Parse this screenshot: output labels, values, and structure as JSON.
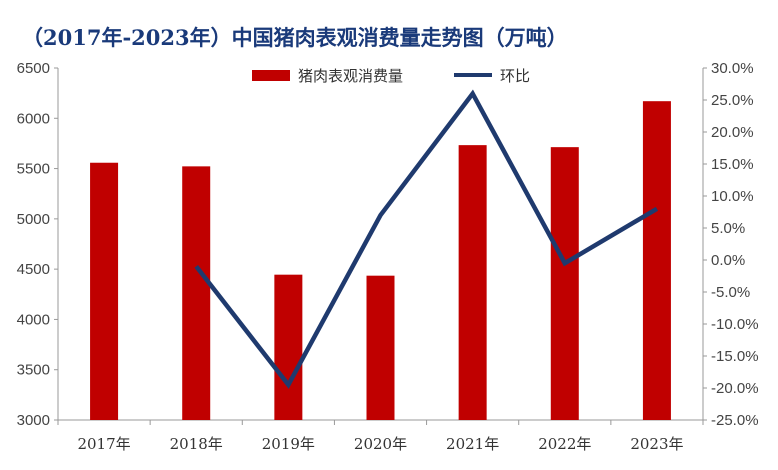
{
  "chart_data": {
    "type": "bar+line",
    "title": "（2017年-2023年）中国猪肉表观消费量走势图（万吨）",
    "categories": [
      "2017年",
      "2018年",
      "2019年",
      "2020年",
      "2021年",
      "2022年",
      "2023年"
    ],
    "series": [
      {
        "name": "猪肉表观消费量",
        "type": "bar",
        "axis": "left",
        "color": "#c00000",
        "values": [
          5558,
          5522,
          4445,
          4435,
          5733,
          5713,
          6170
        ]
      },
      {
        "name": "环比",
        "type": "line",
        "axis": "right",
        "color": "#1f3a6e",
        "values": [
          null,
          -1.0,
          -19.5,
          7.0,
          26.0,
          -0.5,
          8.0
        ]
      }
    ],
    "y_left": {
      "ylim": [
        3000,
        6500
      ],
      "ticks": [
        "3000",
        "3500",
        "4000",
        "4500",
        "5000",
        "5500",
        "6000",
        "6500"
      ]
    },
    "y_right": {
      "ylim": [
        -25,
        30
      ],
      "ticks": [
        "-25.0%",
        "-20.0%",
        "-15.0%",
        "-10.0%",
        "-5.0%",
        "0.0%",
        "5.0%",
        "10.0%",
        "15.0%",
        "20.0%",
        "25.0%",
        "30.0%"
      ]
    },
    "legend": {
      "position": "top"
    },
    "grid": false
  }
}
